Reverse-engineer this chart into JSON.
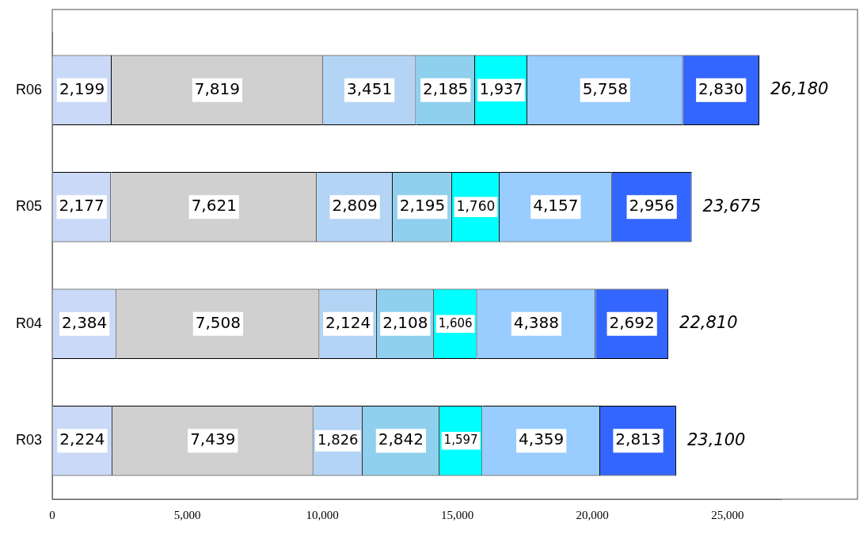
{
  "chart_data": {
    "type": "bar",
    "orientation": "horizontal",
    "stacked": true,
    "categories": [
      "R06",
      "R05",
      "R04",
      "R03"
    ],
    "series": [
      {
        "color": "#c9d9f7",
        "values": [
          2199,
          2177,
          2384,
          2224
        ],
        "value_labels": [
          "2,199",
          "2,177",
          "2,384",
          "2,224"
        ]
      },
      {
        "color": "#d0d0d0",
        "values": [
          7819,
          7621,
          7508,
          7439
        ],
        "value_labels": [
          "7,819",
          "7,621",
          "7,508",
          "7,439"
        ]
      },
      {
        "color": "#b4d4f5",
        "values": [
          3451,
          2809,
          2124,
          1826
        ],
        "value_labels": [
          "3,451",
          "2,809",
          "2,124",
          "1,826"
        ]
      },
      {
        "color": "#8fd0ee",
        "values": [
          2185,
          2195,
          2108,
          2842
        ],
        "value_labels": [
          "2,185",
          "2,195",
          "2,108",
          "2,842"
        ]
      },
      {
        "color": "#00ffff",
        "values": [
          1937,
          1760,
          1606,
          1597
        ],
        "value_labels": [
          "1,937",
          "1,760",
          "1,606",
          "1,597"
        ]
      },
      {
        "color": "#99ccff",
        "values": [
          5758,
          4157,
          4388,
          4359
        ],
        "value_labels": [
          "5,758",
          "4,157",
          "4,388",
          "4,359"
        ]
      },
      {
        "color": "#3366ff",
        "values": [
          2830,
          2956,
          2692,
          2813
        ],
        "value_labels": [
          "2,830",
          "2,956",
          "2,692",
          "2,813"
        ]
      }
    ],
    "xlim": [
      0,
      27000
    ],
    "xticks": [
      0,
      {
        "value": 5000,
        "label": "5,000"
      },
      {
        "value": 10000,
        "label": "10,000"
      },
      {
        "value": 15000,
        "label": "15,000"
      },
      {
        "value": 20000,
        "label": "20,000"
      },
      {
        "value": 25000,
        "label": "25,000"
      }
    ],
    "totals": [
      "26,180",
      "23,675",
      "22,810",
      "23,100"
    ],
    "grid": false,
    "legend": false
  }
}
